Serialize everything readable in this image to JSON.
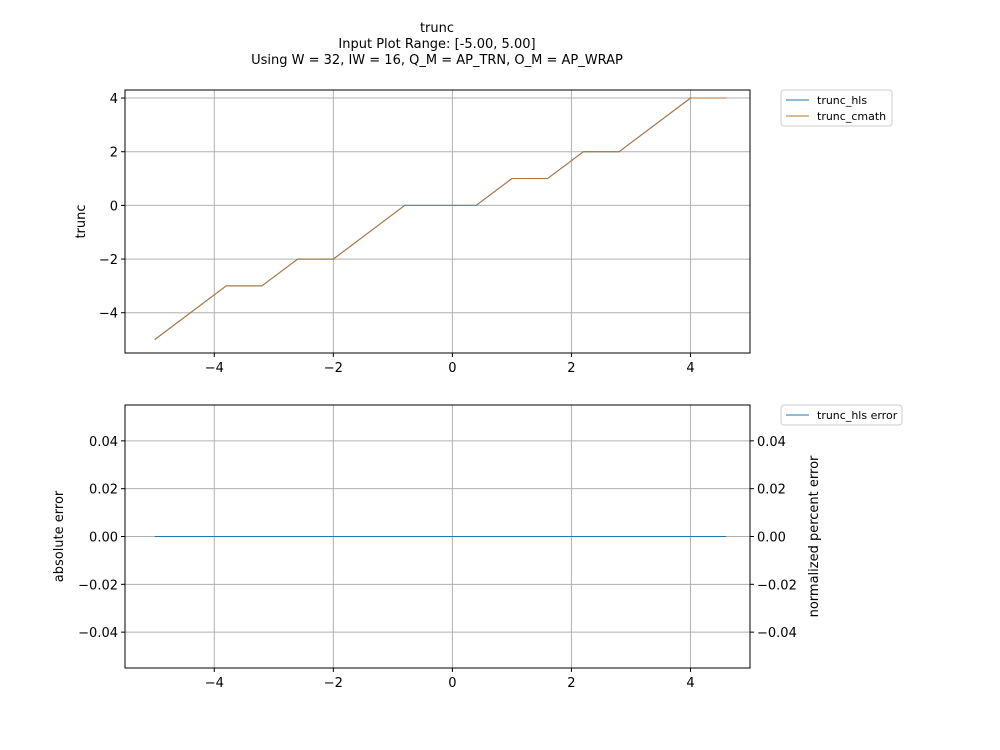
{
  "chart_data": [
    {
      "type": "line",
      "title_lines": [
        "trunc",
        "Input Plot Range: [-5.00, 5.00]",
        "Using W = 32, IW = 16, Q_M = AP_TRN, O_M = AP_WRAP"
      ],
      "xlabel": "",
      "ylabel": "trunc",
      "xlim": [
        -5.5,
        5.0
      ],
      "ylim": [
        -5.5,
        4.3
      ],
      "xticks": [
        -4,
        -2,
        0,
        2,
        4
      ],
      "yticks": [
        -4,
        -2,
        0,
        2,
        4
      ],
      "grid": true,
      "legend_position": "outside-top-right",
      "series": [
        {
          "name": "trunc_hls",
          "color": "#1f77b4",
          "x": [
            -5.0,
            -3.8,
            -3.2,
            -2.6,
            -2.0,
            -0.8,
            0.4,
            1.0,
            1.6,
            2.2,
            2.8,
            4.0,
            4.6
          ],
          "y": [
            -5,
            -3,
            -3,
            -2,
            -2,
            0,
            0,
            1,
            1,
            2,
            2,
            4,
            4
          ]
        },
        {
          "name": "trunc_cmath",
          "color": "#b87333",
          "x": [
            -5.0,
            -3.8,
            -3.2,
            -2.6,
            -2.0,
            -0.8,
            0.4,
            1.0,
            1.6,
            2.2,
            2.8,
            4.0,
            4.6
          ],
          "y": [
            -5,
            -3,
            -3,
            -2,
            -2,
            0,
            0,
            1,
            1,
            2,
            2,
            4,
            4
          ]
        }
      ]
    },
    {
      "type": "line",
      "xlabel": "",
      "ylabel": "absolute error",
      "ylabel_right": "normalized percent error",
      "xlim": [
        -5.5,
        5.0
      ],
      "ylim": [
        -0.055,
        0.055
      ],
      "xticks": [
        -4,
        -2,
        0,
        2,
        4
      ],
      "yticks": [
        -0.04,
        -0.02,
        0.0,
        0.02,
        0.04
      ],
      "yticks_right": [
        -0.04,
        -0.02,
        0.0,
        0.02,
        0.04
      ],
      "grid": true,
      "legend_position": "outside-top-right",
      "series": [
        {
          "name": "trunc_hls error",
          "color": "#1f77b4",
          "x": [
            -5.0,
            4.6
          ],
          "y": [
            0.0,
            0.0
          ]
        }
      ]
    }
  ]
}
